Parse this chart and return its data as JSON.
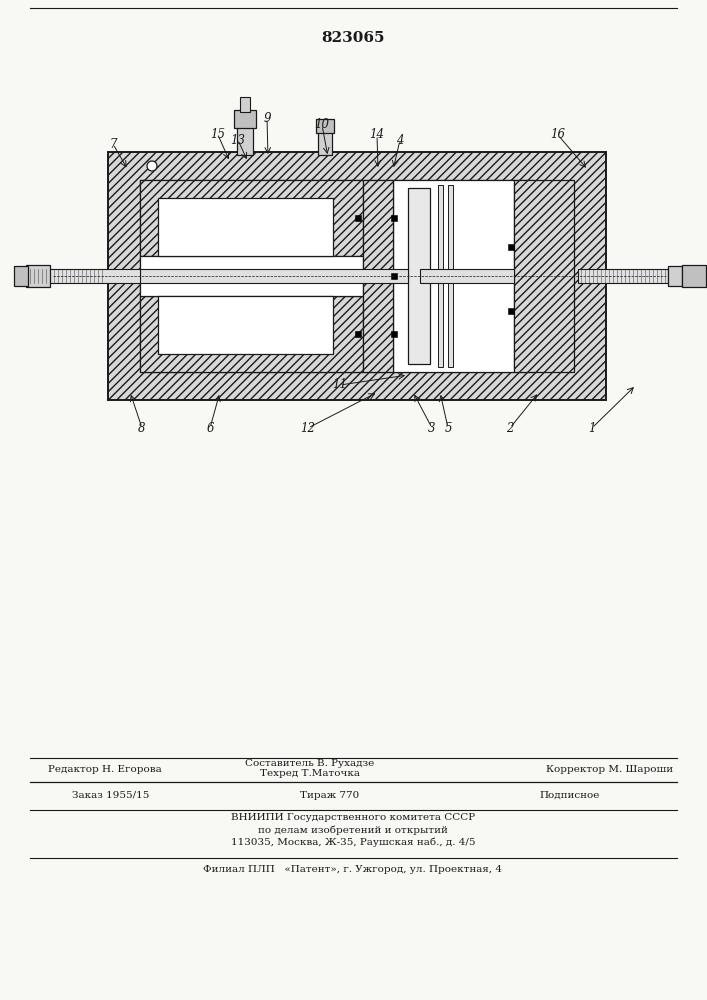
{
  "patent_number": "823065",
  "bg_color": "#f8f8f5",
  "line_color": "#1a1a1a",
  "hatch_color": "#444444",
  "footer_line1_left": "Редактор Н. Егорова",
  "footer_line1_center_top": "Составитель В. Рухадзе",
  "footer_line1_center": "Техред Т.Маточка",
  "footer_line1_right": "Корректор М. Шароши",
  "footer_line2_left": "Заказ 1955/15",
  "footer_line2_center": "Тираж 770",
  "footer_line2_right": "Подписное",
  "footer_line3": "ВНИИПИ Государственного комитета СССР",
  "footer_line4": "по делам изобретений и открытий",
  "footer_line5": "113035, Москва, Ж-35, Раушская наб., д. 4/5",
  "footer_line6": "Филиал ПЛП   «Патент», г. Ужгород, ул. Проектная, 4"
}
